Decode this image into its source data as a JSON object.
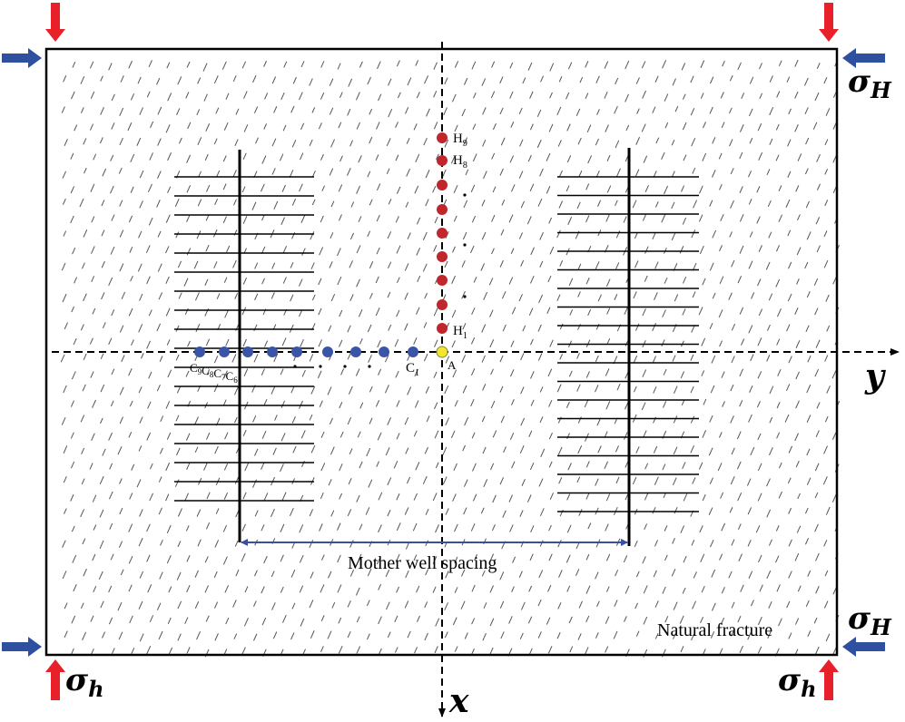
{
  "labels": {
    "stress_H_top": "σ",
    "stress_H_top_sub": "H",
    "stress_H_bottom": "σ",
    "stress_H_bottom_sub": "H",
    "stress_h_left": "σ",
    "stress_h_left_sub": "h",
    "stress_h_right": "σ",
    "stress_h_right_sub": "h",
    "axis_y": "y",
    "axis_x": "x",
    "point_A": "A",
    "H1": "H",
    "H1_sub": "1",
    "H8": "H",
    "H8_sub": "8",
    "H9": "H",
    "H9_sub": "9",
    "C1": "C",
    "C1_sub": "1",
    "C_group": [
      {
        "letter": "C",
        "sub": "9"
      },
      {
        "letter": "C",
        "sub": "8"
      },
      {
        "letter": "C",
        "sub": "7"
      },
      {
        "letter": "C",
        "sub": "6"
      }
    ],
    "mother_well_spacing": "Mother well spacing",
    "natural_fracture": "Natural fracture"
  },
  "colors": {
    "red_point": "#c0262c",
    "blue_point": "#3a55a8",
    "yellow_point": "#f2e632",
    "red_arrow": "#e8202a",
    "blue_arrow": "#2f4f9f",
    "spacing_line": "#3a4fa0"
  }
}
